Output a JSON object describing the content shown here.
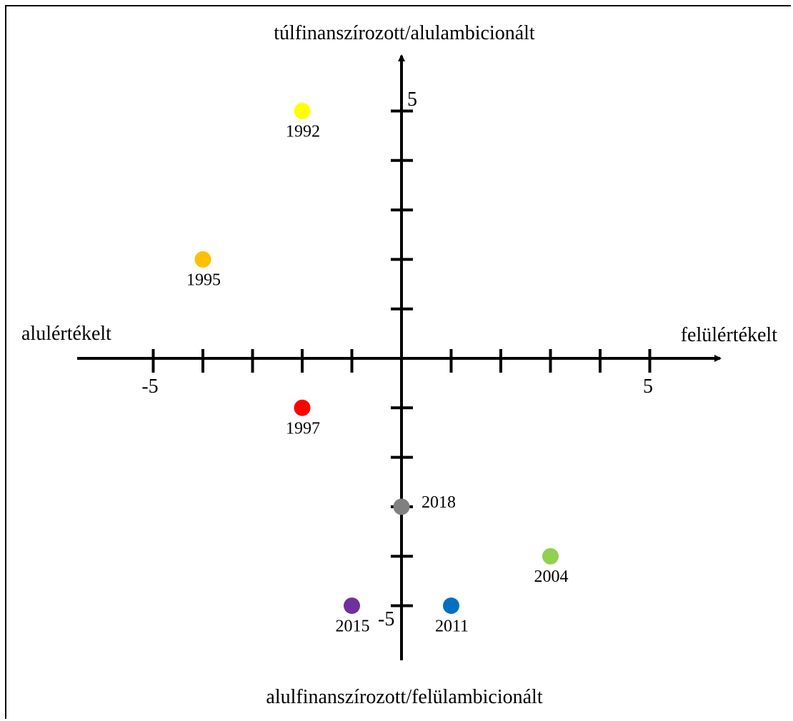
{
  "chart_data": {
    "type": "scatter",
    "y_axis_top_label": "túlfinanszírozott/alulambicionált",
    "y_axis_bottom_label": "alulfinanszírozott/felülambicionált",
    "x_axis_left_label": "alulértékelt",
    "x_axis_right_label": "felülértékelt",
    "xlim": [
      -5,
      5
    ],
    "ylim": [
      -5,
      5
    ],
    "tick_labels": {
      "x_min": "-5",
      "x_max": "5",
      "y_min": "-5",
      "y_max": "5"
    },
    "points": [
      {
        "label": "1992",
        "x": -2,
        "y": 5,
        "color": "#FFFF00"
      },
      {
        "label": "1995",
        "x": -4,
        "y": 2,
        "color": "#FFC000"
      },
      {
        "label": "1997",
        "x": -2,
        "y": -1,
        "color": "#FF0000"
      },
      {
        "label": "2018",
        "x": 0,
        "y": -3,
        "color": "#808080"
      },
      {
        "label": "2004",
        "x": 3,
        "y": -4,
        "color": "#92D050"
      },
      {
        "label": "2015",
        "x": -1,
        "y": -5,
        "color": "#7030A0"
      },
      {
        "label": "2011",
        "x": 1,
        "y": -5,
        "color": "#0070C0"
      }
    ]
  }
}
